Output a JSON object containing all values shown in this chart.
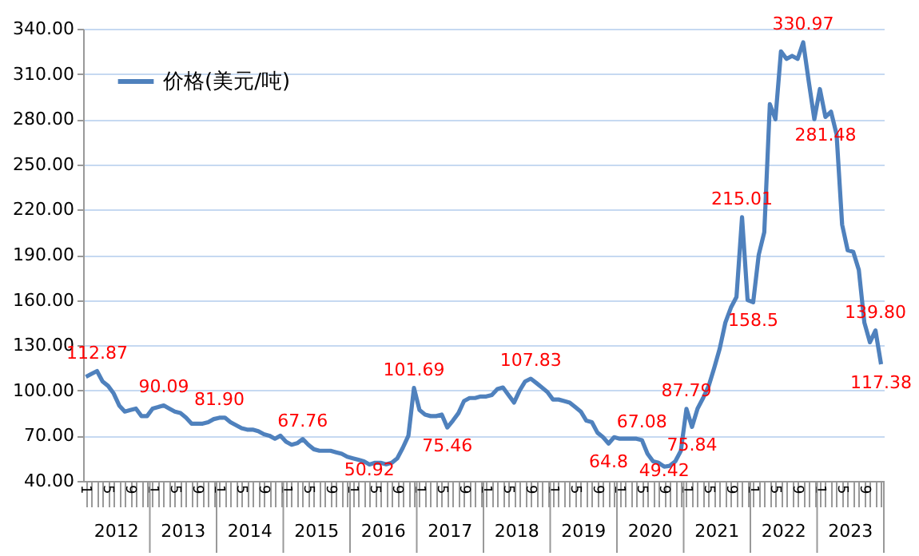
{
  "chart_data": {
    "type": "line",
    "categories": [
      "1",
      null,
      null,
      null,
      "5",
      null,
      null,
      null,
      "9",
      null,
      null,
      null,
      "1",
      null,
      null,
      null,
      "5",
      null,
      null,
      null,
      "9",
      null,
      null,
      null,
      "1",
      null,
      null,
      null,
      "5",
      null,
      null,
      null,
      "9",
      null,
      null,
      null,
      "1",
      null,
      null,
      null,
      "5",
      null,
      null,
      null,
      "9",
      null,
      null,
      null,
      "1",
      null,
      null,
      null,
      "5",
      null,
      null,
      null,
      "9",
      null,
      null,
      null,
      "1",
      null,
      null,
      null,
      "5",
      null,
      null,
      null,
      "9",
      null,
      null,
      null,
      "1",
      null,
      null,
      null,
      "5",
      null,
      null,
      null,
      "9",
      null,
      null,
      null,
      "1",
      null,
      null,
      null,
      "5",
      null,
      null,
      null,
      "9",
      null,
      null,
      null,
      "1",
      null,
      null,
      null,
      "5",
      null,
      null,
      null,
      "9",
      null,
      null,
      null,
      "1",
      null,
      null,
      null,
      "5",
      null,
      null,
      null,
      "9",
      null,
      null,
      null,
      "1",
      null,
      null,
      null,
      "5",
      null,
      null,
      null,
      "9",
      null,
      null,
      null,
      "1",
      null,
      null,
      null,
      "5",
      null,
      null,
      null,
      "9",
      null,
      null,
      null
    ],
    "series": [
      {
        "name": "价格(美元/吨)",
        "color": "#4f81bd",
        "values": [
          109,
          111,
          112.87,
          106,
          103,
          98,
          90,
          86,
          87,
          88,
          83,
          83,
          88,
          89,
          90.09,
          88,
          86,
          85,
          82,
          78,
          78,
          78,
          79,
          81,
          81.9,
          82,
          79,
          77,
          75,
          74,
          74,
          73,
          71,
          70,
          68,
          70,
          66,
          64,
          65,
          67.76,
          64,
          61,
          60,
          60,
          60,
          59,
          58,
          56,
          55,
          54,
          53,
          50.92,
          52,
          52,
          51,
          52,
          55,
          62,
          70,
          101.69,
          87,
          84,
          83,
          83,
          84,
          75.46,
          80,
          85,
          93,
          95,
          95,
          96,
          96,
          97,
          101,
          102,
          97,
          92,
          100,
          106,
          107.83,
          105,
          102,
          99,
          94,
          94,
          93,
          92,
          89,
          86,
          80,
          79,
          72,
          69,
          64.8,
          69,
          68,
          68,
          68,
          68,
          67.08,
          58,
          53,
          52,
          49.42,
          50,
          53,
          60,
          87.79,
          75.84,
          88,
          95,
          103,
          115,
          128,
          145,
          155,
          162,
          215.01,
          160,
          158.5,
          190,
          205,
          290,
          280,
          325,
          320,
          322,
          320,
          330.97,
          305,
          280,
          300,
          281.48,
          285,
          270,
          210,
          193,
          192,
          180,
          145,
          132,
          139.8,
          117.38
        ],
        "value_labels": [
          null,
          null,
          "112.87",
          null,
          null,
          null,
          null,
          null,
          null,
          null,
          null,
          null,
          null,
          null,
          "90.09",
          null,
          null,
          null,
          null,
          null,
          null,
          null,
          null,
          null,
          "81.90",
          null,
          null,
          null,
          null,
          null,
          null,
          null,
          null,
          null,
          null,
          null,
          null,
          null,
          null,
          "67.76",
          null,
          null,
          null,
          null,
          null,
          null,
          null,
          null,
          null,
          null,
          null,
          "50.92",
          null,
          null,
          null,
          null,
          null,
          null,
          null,
          "101.69",
          null,
          null,
          null,
          null,
          null,
          "75.46",
          null,
          null,
          null,
          null,
          null,
          null,
          null,
          null,
          null,
          null,
          null,
          null,
          null,
          null,
          "107.83",
          null,
          null,
          null,
          null,
          null,
          null,
          null,
          null,
          null,
          null,
          null,
          null,
          null,
          "64.8",
          null,
          null,
          null,
          null,
          null,
          "67.08",
          null,
          null,
          null,
          "49.42",
          null,
          null,
          null,
          "87.79",
          "75.84",
          null,
          null,
          null,
          null,
          null,
          null,
          null,
          null,
          "215.01",
          null,
          "158.5",
          null,
          null,
          null,
          null,
          null,
          null,
          null,
          null,
          "330.97",
          null,
          null,
          null,
          "281.48",
          null,
          null,
          null,
          null,
          null,
          null,
          null,
          null,
          "139.80",
          "117.38"
        ]
      }
    ],
    "ylim": [
      40,
      340
    ],
    "yticks": [
      {
        "value": 40,
        "label": "40.00"
      },
      {
        "value": 70,
        "label": "70.00"
      },
      {
        "value": 100,
        "label": "100.00"
      },
      {
        "value": 130,
        "label": "130.00"
      },
      {
        "value": 160,
        "label": "160.00"
      },
      {
        "value": 190,
        "label": "190.00"
      },
      {
        "value": 220,
        "label": "220.00"
      },
      {
        "value": 250,
        "label": "250.00"
      },
      {
        "value": 280,
        "label": "280.00"
      },
      {
        "value": 310,
        "label": "310.00"
      },
      {
        "value": 340,
        "label": "340.00"
      }
    ],
    "grid": "y",
    "legend": "top left",
    "marker": "none",
    "line_style": "solid",
    "annotations": [
      "2012",
      "2013",
      "2014",
      "2015",
      "2016",
      "2017",
      "2018",
      "2019",
      "2020",
      "2021",
      "2022",
      "2023"
    ]
  }
}
